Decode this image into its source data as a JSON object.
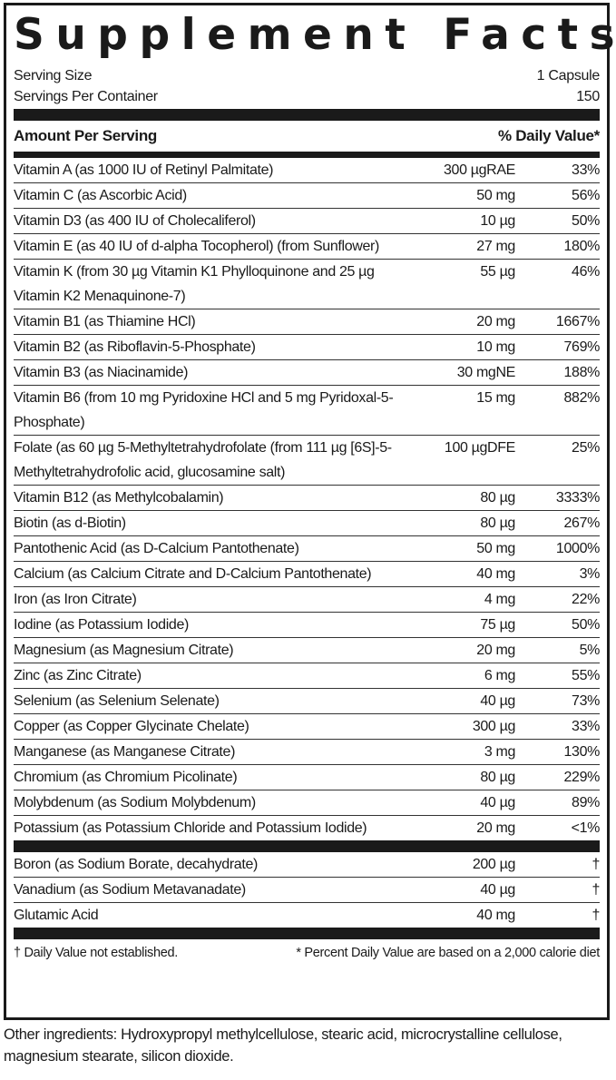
{
  "title": "Supplement Facts",
  "serving": {
    "size_label": "Serving Size",
    "size_value": "1 Capsule",
    "per_container_label": "Servings Per Container",
    "per_container_value": "150"
  },
  "header": {
    "amount": "Amount Per Serving",
    "dv": "% Daily Value*"
  },
  "nutrients": [
    {
      "name": "Vitamin A (as 1000 IU of Retinyl Palmitate)",
      "amount": "300 µgRAE",
      "dv": "33%"
    },
    {
      "name": "Vitamin C (as Ascorbic Acid)",
      "amount": "50 mg",
      "dv": "56%"
    },
    {
      "name": "Vitamin D3 (as 400 IU of Cholecaliferol)",
      "amount": "10 µg",
      "dv": "50%"
    },
    {
      "name": "Vitamin E (as 40 IU of d-alpha Tocopherol) (from Sunflower)",
      "amount": "27 mg",
      "dv": "180%"
    },
    {
      "name": "Vitamin K (from 30 µg Vitamin K1 Phylloquinone and 25 µg Vitamin K2 Menaquinone-7)",
      "amount": "55  µg",
      "dv": "46%"
    },
    {
      "name": "Vitamin B1 (as Thiamine HCl)",
      "amount": "20 mg",
      "dv": "1667%"
    },
    {
      "name": "Vitamin B2 (as Riboflavin-5-Phosphate)",
      "amount": "10 mg",
      "dv": "769%"
    },
    {
      "name": "Vitamin B3 (as Niacinamide)",
      "amount": "30 mgNE",
      "dv": "188%"
    },
    {
      "name": "Vitamin B6 (from 10 mg Pyridoxine HCl and 5 mg Pyridoxal-5-Phosphate)",
      "amount": "15 mg",
      "dv": "882%"
    },
    {
      "name": "Folate (as 60 µg 5-Methyltetrahydrofolate (from 111 µg [6S]-5-Methyltetrahydrofolic acid, glucosamine salt)",
      "amount": "100 µgDFE",
      "dv": "25%"
    },
    {
      "name": "Vitamin B12 (as Methylcobalamin)",
      "amount": "80 µg",
      "dv": "3333%"
    },
    {
      "name": "Biotin (as d-Biotin)",
      "amount": "80 µg",
      "dv": "267%"
    },
    {
      "name": "Pantothenic Acid (as D-Calcium Pantothenate)",
      "amount": "50 mg",
      "dv": "1000%"
    },
    {
      "name": "Calcium (as Calcium Citrate and D-Calcium Pantothenate)",
      "amount": "40 mg",
      "dv": "3%"
    },
    {
      "name": "Iron (as Iron Citrate)",
      "amount": "4 mg",
      "dv": "22%"
    },
    {
      "name": "Iodine (as Potassium Iodide)",
      "amount": "75 µg",
      "dv": "50%"
    },
    {
      "name": "Magnesium (as Magnesium Citrate)",
      "amount": "20 mg",
      "dv": "5%"
    },
    {
      "name": "Zinc (as Zinc Citrate)",
      "amount": "6 mg",
      "dv": "55%"
    },
    {
      "name": "Selenium (as Selenium Selenate)",
      "amount": "40 µg",
      "dv": "73%"
    },
    {
      "name": "Copper (as Copper Glycinate Chelate)",
      "amount": "300 µg",
      "dv": "33%"
    },
    {
      "name": "Manganese (as Manganese Citrate)",
      "amount": "3 mg",
      "dv": "130%"
    },
    {
      "name": "Chromium (as Chromium Picolinate)",
      "amount": "80 µg",
      "dv": "229%"
    },
    {
      "name": "Molybdenum (as Sodium Molybdenum)",
      "amount": "40 µg",
      "dv": "89%"
    },
    {
      "name": "Potassium (as Potassium Chloride and Potassium Iodide)",
      "amount": "20 mg",
      "dv": "<1%"
    }
  ],
  "others": [
    {
      "name": "Boron (as Sodium Borate, decahydrate)",
      "amount": "200 µg",
      "dv": "†"
    },
    {
      "name": "Vanadium (as Sodium Metavanadate)",
      "amount": "40 µg",
      "dv": "†"
    },
    {
      "name": "Glutamic Acid",
      "amount": "40 mg",
      "dv": "†"
    }
  ],
  "footnotes": {
    "dagger": "† Daily Value not established.",
    "asterisk": "* Percent Daily Value are based on a 2,000 calorie diet"
  },
  "other_ingredients": "Other ingredients: Hydroxypropyl methylcellulose, stearic acid, microcrystalline cellulose, magnesium stearate, silicon dioxide."
}
